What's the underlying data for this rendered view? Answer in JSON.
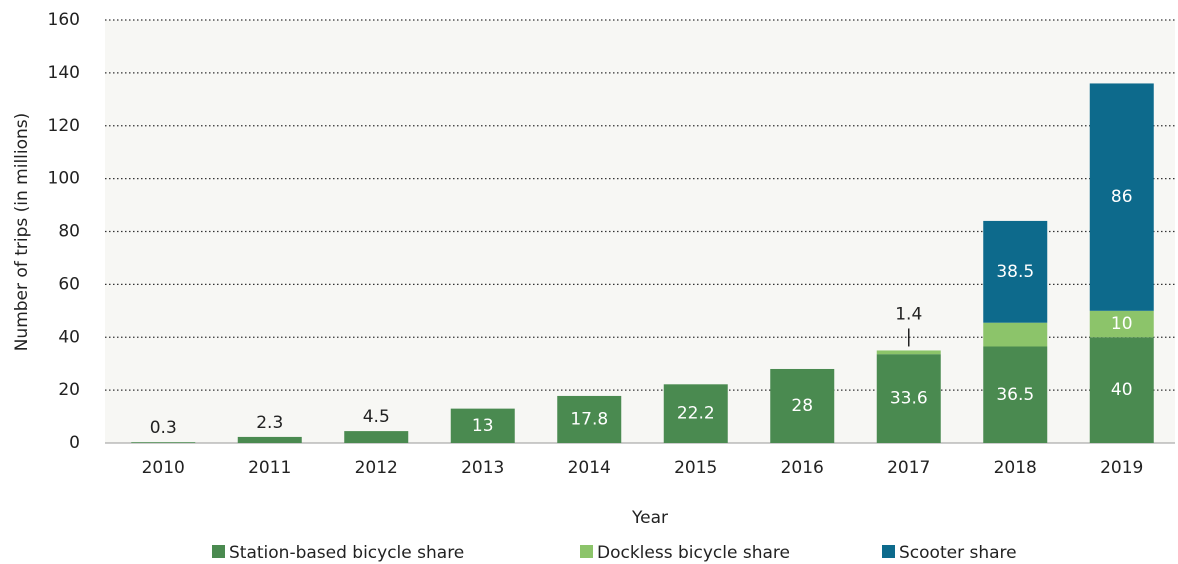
{
  "chart_data": {
    "type": "stacked_bar",
    "xlabel": "Year",
    "ylabel": "Number of trips (in millions)",
    "categories": [
      "2010",
      "2011",
      "2012",
      "2013",
      "2014",
      "2015",
      "2016",
      "2017",
      "2018",
      "2019"
    ],
    "series": [
      {
        "name": "Station-based bicycle share",
        "color": "#4a8a50",
        "values": [
          0.3,
          2.3,
          4.5,
          13,
          17.8,
          22.2,
          28,
          33.6,
          36.5,
          40
        ]
      },
      {
        "name": "Dockless bicycle share",
        "color": "#8cc46a",
        "values": [
          null,
          null,
          null,
          null,
          null,
          null,
          null,
          1.4,
          9,
          10
        ]
      },
      {
        "name": "Scooter share",
        "color": "#0d6a8c",
        "values": [
          null,
          null,
          null,
          null,
          null,
          null,
          null,
          null,
          38.5,
          86
        ]
      }
    ],
    "ylim": [
      0,
      160
    ],
    "yticks": [
      0,
      20,
      40,
      60,
      80,
      100,
      120,
      140,
      160
    ],
    "grid": true,
    "legend": "bottom"
  }
}
